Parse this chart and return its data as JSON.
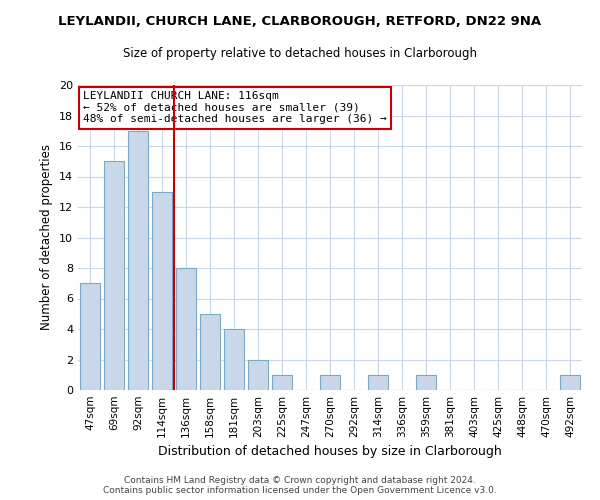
{
  "title": "LEYLANDII, CHURCH LANE, CLARBOROUGH, RETFORD, DN22 9NA",
  "subtitle": "Size of property relative to detached houses in Clarborough",
  "xlabel": "Distribution of detached houses by size in Clarborough",
  "ylabel": "Number of detached properties",
  "categories": [
    "47sqm",
    "69sqm",
    "92sqm",
    "114sqm",
    "136sqm",
    "158sqm",
    "181sqm",
    "203sqm",
    "225sqm",
    "247sqm",
    "270sqm",
    "292sqm",
    "314sqm",
    "336sqm",
    "359sqm",
    "381sqm",
    "403sqm",
    "425sqm",
    "448sqm",
    "470sqm",
    "492sqm"
  ],
  "values": [
    7,
    15,
    17,
    13,
    8,
    5,
    4,
    2,
    1,
    0,
    1,
    0,
    1,
    0,
    1,
    0,
    0,
    0,
    0,
    0,
    1
  ],
  "bar_color": "#c8d8e8",
  "bar_edge_color": "#7aaac8",
  "marker_index": 3,
  "marker_line_color": "#cc0000",
  "annotation_line1": "LEYLANDII CHURCH LANE: 116sqm",
  "annotation_line2": "← 52% of detached houses are smaller (39)",
  "annotation_line3": "48% of semi-detached houses are larger (36) →",
  "ylim": [
    0,
    20
  ],
  "yticks": [
    0,
    2,
    4,
    6,
    8,
    10,
    12,
    14,
    16,
    18,
    20
  ],
  "footer1": "Contains HM Land Registry data © Crown copyright and database right 2024.",
  "footer2": "Contains public sector information licensed under the Open Government Licence v3.0.",
  "background_color": "#ffffff",
  "grid_color": "#c8d8e8"
}
